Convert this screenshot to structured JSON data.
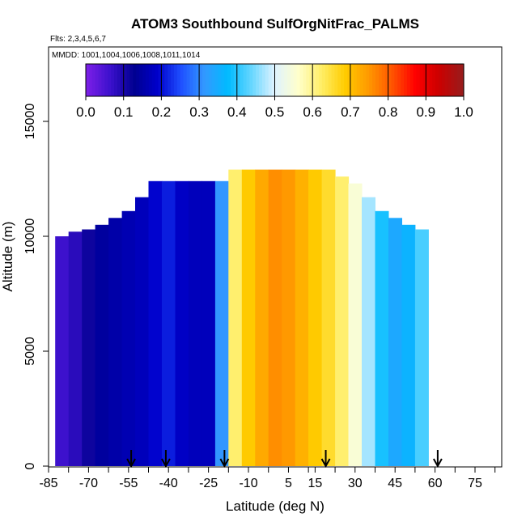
{
  "chart_data": {
    "type": "heatmap",
    "title": "ATOM3 Southbound SulfOrgNitFrac_PALMS",
    "subtitle_flights": "Flts: 2,3,4,5,6,7",
    "subtitle_dates": "MMDD: 1001,1004,1006,1008,1011,1014",
    "xlabel": "Latitude (deg N)",
    "ylabel": "Altitude (m)",
    "xlim": [
      -85,
      85
    ],
    "ylim": [
      0,
      15000
    ],
    "x_tick_labels": [
      "-85",
      "-70",
      "-55",
      "-40",
      "-25",
      "-10",
      "5",
      "15",
      "30",
      "45",
      "60",
      "75"
    ],
    "x_tick_values": [
      -85,
      -70,
      -55,
      -40,
      -25,
      -10,
      5,
      15,
      30,
      45,
      60,
      75
    ],
    "y_tick_labels": [
      "0",
      "5000",
      "10000",
      "15000"
    ],
    "y_tick_values": [
      0,
      5000,
      10000,
      15000
    ],
    "colorbar": {
      "range": [
        0.0,
        1.0
      ],
      "tick_labels": [
        "0.0",
        "0.1",
        "0.2",
        "0.3",
        "0.4",
        "0.5",
        "0.6",
        "0.7",
        "0.8",
        "0.9",
        "1.0"
      ],
      "colors": [
        "#7a1fe6",
        "#3a10cc",
        "#000090",
        "#0000cc",
        "#1f50ff",
        "#3399ff",
        "#00bbff",
        "#66d6ff",
        "#dff3ff",
        "#ffffcc",
        "#ffee66",
        "#ffcc00",
        "#ff9900",
        "#ff5500",
        "#ff0000",
        "#cc0000",
        "#9a1a1a"
      ]
    },
    "flight_markers_lat": [
      -54,
      -41,
      -19,
      19,
      61
    ],
    "bands": [
      {
        "lat": -80,
        "zmin": 0,
        "zmax": 10000,
        "value": 0.06
      },
      {
        "lat": -75,
        "zmin": 0,
        "zmax": 10200,
        "value": 0.08
      },
      {
        "lat": -70,
        "zmin": 0,
        "zmax": 10300,
        "value": 0.11
      },
      {
        "lat": -65,
        "zmin": 0,
        "zmax": 10500,
        "value": 0.14
      },
      {
        "lat": -60,
        "zmin": 0,
        "zmax": 10800,
        "value": 0.15
      },
      {
        "lat": -55,
        "zmin": 0,
        "zmax": 11100,
        "value": 0.16
      },
      {
        "lat": -50,
        "zmin": 0,
        "zmax": 11700,
        "value": 0.17
      },
      {
        "lat": -45,
        "zmin": 0,
        "zmax": 12400,
        "value": 0.19
      },
      {
        "lat": -40,
        "zmin": 0,
        "zmax": 12400,
        "value": 0.21
      },
      {
        "lat": -35,
        "zmin": 0,
        "zmax": 12400,
        "value": 0.18
      },
      {
        "lat": -30,
        "zmin": 0,
        "zmax": 12400,
        "value": 0.17
      },
      {
        "lat": -25,
        "zmin": 0,
        "zmax": 12400,
        "value": 0.17
      },
      {
        "lat": -20,
        "zmin": 0,
        "zmax": 12400,
        "value": 0.31
      },
      {
        "lat": -15,
        "zmin": 0,
        "zmax": 12900,
        "value": 0.62
      },
      {
        "lat": -10,
        "zmin": 0,
        "zmax": 12900,
        "value": 0.69
      },
      {
        "lat": -5,
        "zmin": 0,
        "zmax": 12900,
        "value": 0.73
      },
      {
        "lat": 0,
        "zmin": 0,
        "zmax": 12900,
        "value": 0.76
      },
      {
        "lat": 5,
        "zmin": 0,
        "zmax": 12900,
        "value": 0.75
      },
      {
        "lat": 10,
        "zmin": 0,
        "zmax": 12900,
        "value": 0.72
      },
      {
        "lat": 15,
        "zmin": 0,
        "zmax": 12900,
        "value": 0.69
      },
      {
        "lat": 20,
        "zmin": 0,
        "zmax": 12900,
        "value": 0.66
      },
      {
        "lat": 25,
        "zmin": 0,
        "zmax": 12600,
        "value": 0.62
      },
      {
        "lat": 30,
        "zmin": 0,
        "zmax": 12300,
        "value": 0.55
      },
      {
        "lat": 35,
        "zmin": 0,
        "zmax": 11700,
        "value": 0.47
      },
      {
        "lat": 40,
        "zmin": 0,
        "zmax": 11100,
        "value": 0.39
      },
      {
        "lat": 45,
        "zmin": 0,
        "zmax": 10800,
        "value": 0.34
      },
      {
        "lat": 50,
        "zmin": 0,
        "zmax": 10500,
        "value": 0.36
      },
      {
        "lat": 55,
        "zmin": 0,
        "zmax": 10300,
        "value": 0.42
      }
    ]
  }
}
